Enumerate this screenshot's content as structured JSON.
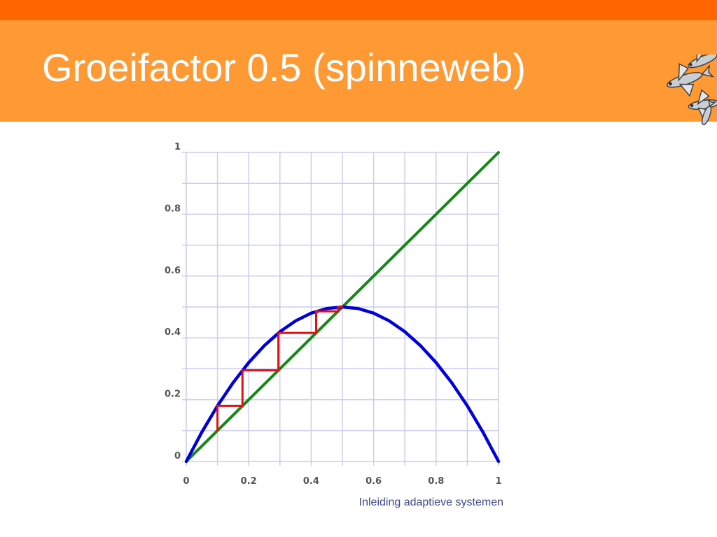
{
  "slide": {
    "title": "Groeifactor 0.5 (spinneweb)",
    "footer": "Inleiding adaptieve systemen"
  },
  "colors": {
    "top_band": "#ff6600",
    "title_band": "#ff9933",
    "curve": "#0000dd",
    "diagonal": "#148814",
    "cobweb": "#dd1111",
    "grid": "#ccccee"
  },
  "logo": {
    "icon": "flying-fish-icon"
  },
  "chart_data": {
    "type": "line",
    "xlim": [
      0,
      1
    ],
    "ylim": [
      0,
      1
    ],
    "grid": true,
    "x_ticks": [
      0,
      0.1,
      0.2,
      0.3,
      0.4,
      0.5,
      0.6,
      0.7,
      0.8,
      0.9,
      1
    ],
    "y_ticks": [
      0,
      0.1,
      0.2,
      0.3,
      0.4,
      0.5,
      0.6,
      0.7,
      0.8,
      0.9,
      1
    ],
    "x_tick_labels": [
      {
        "value": 0,
        "label": "0"
      },
      {
        "value": 0.2,
        "label": "0.2"
      },
      {
        "value": 0.4,
        "label": "0.4"
      },
      {
        "value": 0.6,
        "label": "0.6"
      },
      {
        "value": 0.8,
        "label": "0.8"
      },
      {
        "value": 1,
        "label": "1"
      }
    ],
    "y_tick_labels": [
      {
        "value": 0,
        "label": "0"
      },
      {
        "value": 0.2,
        "label": "0.2"
      },
      {
        "value": 0.4,
        "label": "0.4"
      },
      {
        "value": 0.6,
        "label": "0.6"
      },
      {
        "value": 0.8,
        "label": "0.8"
      },
      {
        "value": 1,
        "label": "1"
      }
    ],
    "series": [
      {
        "kind": "parabola",
        "color": "#0000dd",
        "x": [
          0,
          0.05,
          0.1,
          0.15,
          0.2,
          0.25,
          0.3,
          0.35,
          0.4,
          0.45,
          0.5,
          0.55,
          0.6,
          0.65,
          0.7,
          0.75,
          0.8,
          0.85,
          0.9,
          0.95,
          1
        ],
        "y": [
          0,
          0.095,
          0.18,
          0.255,
          0.32,
          0.375,
          0.42,
          0.455,
          0.48,
          0.495,
          0.5,
          0.495,
          0.48,
          0.455,
          0.42,
          0.375,
          0.32,
          0.255,
          0.18,
          0.095,
          0
        ]
      },
      {
        "kind": "diagonal",
        "color": "#148814",
        "x": [
          0,
          1
        ],
        "y": [
          0,
          1
        ]
      },
      {
        "kind": "cobweb",
        "color": "#dd1111",
        "x": [
          0.1,
          0.1,
          0.18,
          0.18,
          0.295,
          0.295,
          0.416,
          0.416,
          0.486,
          0.486,
          0.5
        ],
        "y": [
          0.1,
          0.18,
          0.18,
          0.295,
          0.295,
          0.416,
          0.416,
          0.486,
          0.486,
          0.5,
          0.5
        ]
      }
    ]
  }
}
